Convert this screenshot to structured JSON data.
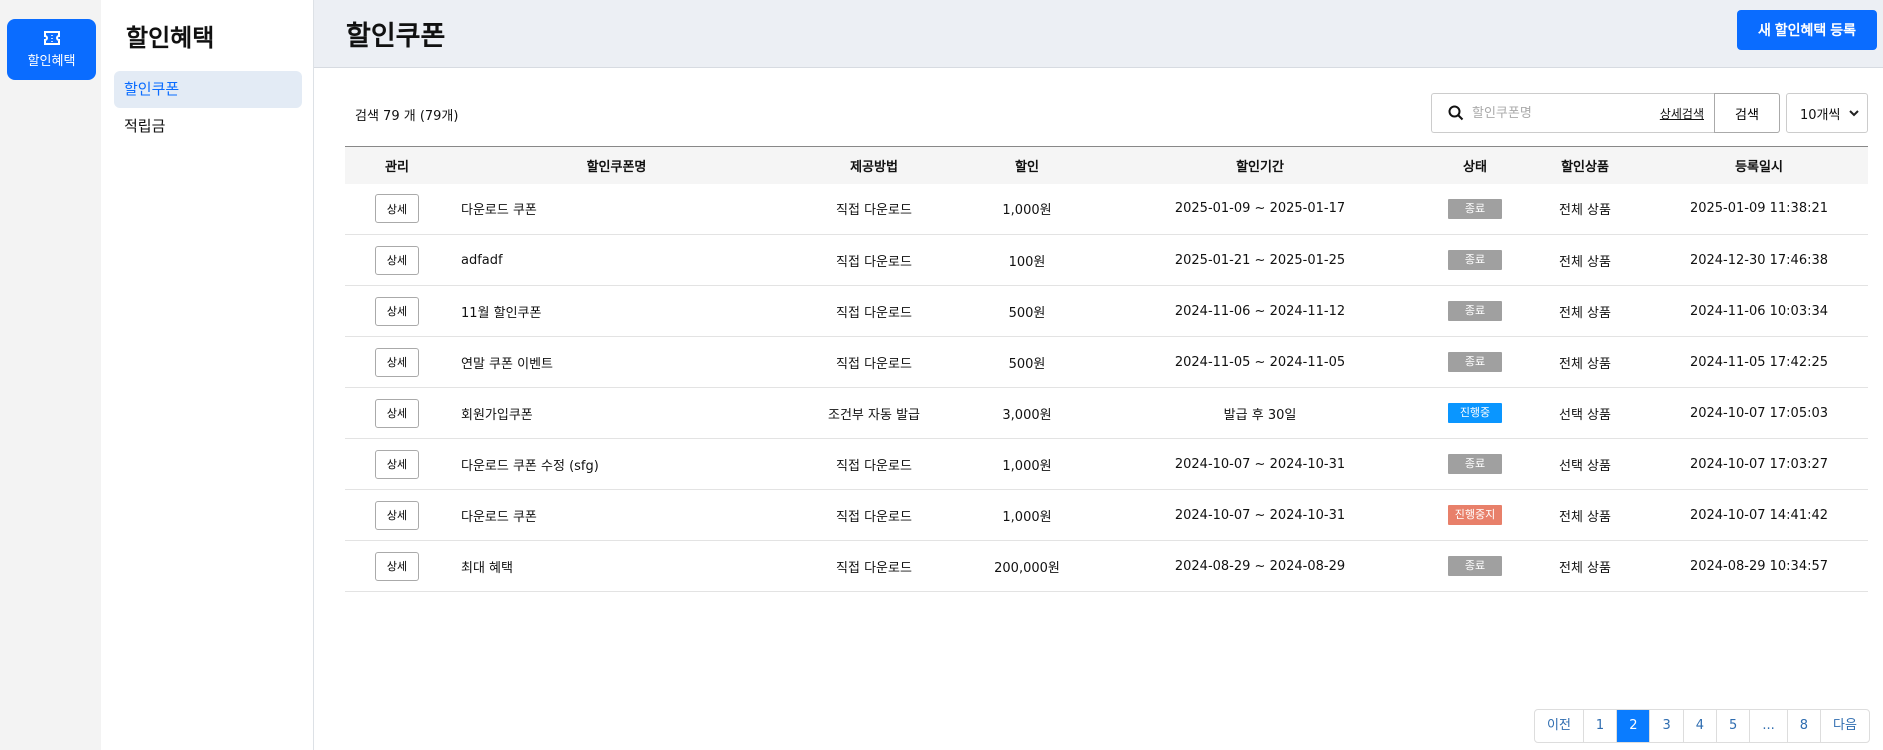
{
  "rail": {
    "label": "할인혜택",
    "icon": "ticket-icon"
  },
  "sidebar": {
    "title": "할인혜택",
    "items": [
      {
        "label": "할인쿠폰",
        "active": true
      },
      {
        "label": "적립금",
        "active": false
      }
    ]
  },
  "header": {
    "title": "할인쿠폰",
    "new_button": "새 할인혜택 등록"
  },
  "search": {
    "count_text": "검색 79 개 (79개)",
    "placeholder": "할인쿠폰명",
    "value": "",
    "advanced_label": "상세검색",
    "button_label": "검색",
    "page_size": "10개씩"
  },
  "table": {
    "columns": [
      "관리",
      "할인쿠폰명",
      "제공방법",
      "할인",
      "할인기간",
      "상태",
      "할인상품",
      "등록일시"
    ],
    "detail_label": "상세",
    "rows": [
      {
        "name": "다운로드 쿠폰",
        "method": "직접 다운로드",
        "discount": "1,000원",
        "period": "2025-01-09 ~ 2025-01-17",
        "status": "종료",
        "status_color": "#a0a0a0",
        "product": "전체 상품",
        "created": "2025-01-09 11:38:21"
      },
      {
        "name": "adfadf",
        "method": "직접 다운로드",
        "discount": "100원",
        "period": "2025-01-21 ~ 2025-01-25",
        "status": "종료",
        "status_color": "#a0a0a0",
        "product": "전체 상품",
        "created": "2024-12-30 17:46:38"
      },
      {
        "name": "11월 할인쿠폰",
        "method": "직접 다운로드",
        "discount": "500원",
        "period": "2024-11-06 ~ 2024-11-12",
        "status": "종료",
        "status_color": "#a0a0a0",
        "product": "전체 상품",
        "created": "2024-11-06 10:03:34"
      },
      {
        "name": "연말 쿠폰 이벤트",
        "method": "직접 다운로드",
        "discount": "500원",
        "period": "2024-11-05 ~ 2024-11-05",
        "status": "종료",
        "status_color": "#a0a0a0",
        "product": "전체 상품",
        "created": "2024-11-05 17:42:25"
      },
      {
        "name": "회원가입쿠폰",
        "method": "조건부 자동 발급",
        "discount": "3,000원",
        "period": "발급 후 30일",
        "status": "진행중",
        "status_color": "#0a96ff",
        "product": "선택 상품",
        "created": "2024-10-07 17:05:03"
      },
      {
        "name": "다운로드 쿠폰 수정 (sfg)",
        "method": "직접 다운로드",
        "discount": "1,000원",
        "period": "2024-10-07 ~ 2024-10-31",
        "status": "종료",
        "status_color": "#a0a0a0",
        "product": "선택 상품",
        "created": "2024-10-07 17:03:27"
      },
      {
        "name": "다운로드 쿠폰",
        "method": "직접 다운로드",
        "discount": "1,000원",
        "period": "2024-10-07 ~ 2024-10-31",
        "status": "진행중지",
        "status_color": "#e8806a",
        "product": "전체 상품",
        "created": "2024-10-07 14:41:42"
      },
      {
        "name": "최대 혜택",
        "method": "직접 다운로드",
        "discount": "200,000원",
        "period": "2024-08-29 ~ 2024-08-29",
        "status": "종료",
        "status_color": "#a0a0a0",
        "product": "전체 상품",
        "created": "2024-08-29 10:34:57"
      }
    ]
  },
  "pagination": {
    "items": [
      "이전",
      "1",
      "2",
      "3",
      "4",
      "5",
      "...",
      "8",
      "다음"
    ],
    "current": "2"
  },
  "colors": {
    "accent": "#0a6cff"
  }
}
